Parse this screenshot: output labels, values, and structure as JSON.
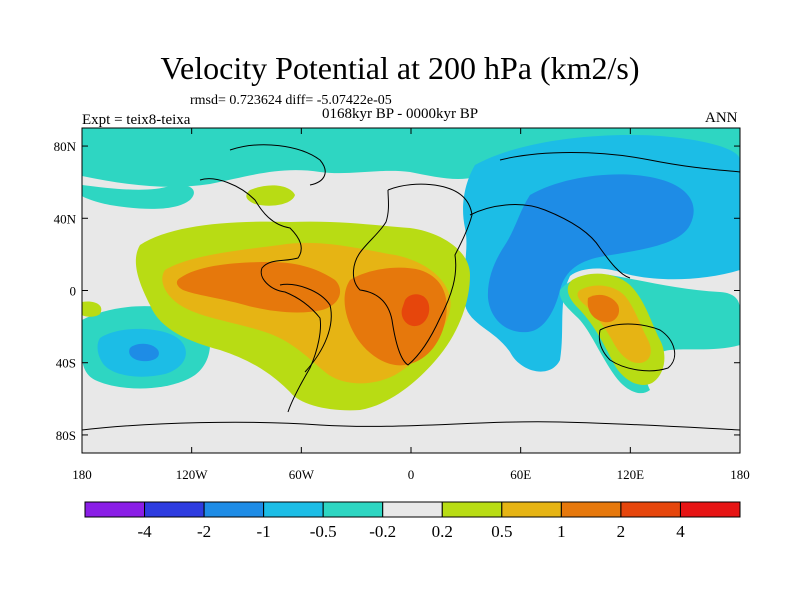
{
  "header": {
    "title": "Velocity Potential at 200 hPa (km2/s)",
    "stats": "rmsd= 0.723624  diff= -5.07422e-05",
    "period": "0168kyr BP - 0000kyr BP",
    "experiment": "Expt = teix8-teixa",
    "season": "ANN"
  },
  "chart_data": {
    "type": "heatmap",
    "title": "Velocity Potential at 200 hPa (km2/s)",
    "units": "km2/s",
    "xlim": [
      -180,
      180
    ],
    "ylim": [
      -90,
      90
    ],
    "x_ticks": [
      {
        "value": -180,
        "label": "180"
      },
      {
        "value": -120,
        "label": "120W"
      },
      {
        "value": -60,
        "label": "60W"
      },
      {
        "value": 0,
        "label": "0"
      },
      {
        "value": 60,
        "label": "60E"
      },
      {
        "value": 120,
        "label": "120E"
      },
      {
        "value": 180,
        "label": "180"
      }
    ],
    "y_ticks": [
      {
        "value": 80,
        "label": "80N"
      },
      {
        "value": 40,
        "label": "40N"
      },
      {
        "value": 0,
        "label": "0"
      },
      {
        "value": -40,
        "label": "40S"
      },
      {
        "value": -80,
        "label": "80S"
      }
    ],
    "color_levels": [
      "-4",
      "-2",
      "-1",
      "-0.5",
      "-0.2",
      "0.2",
      "0.5",
      "1",
      "2",
      "4"
    ],
    "color_bins": [
      "#8a1ee6",
      "#2e3ce0",
      "#1e8ce6",
      "#1cbde6",
      "#2ed6c2",
      "#e8e8e8",
      "#b8dc14",
      "#e6b414",
      "#e6780c",
      "#e6460c",
      "#e61414"
    ],
    "background_color": "#e8e8e8",
    "features": [
      {
        "region": "Arctic band",
        "level": "-0.5 to -0.2",
        "bin": 4
      },
      {
        "region": "Eurasia / Asian monsoon",
        "level": "-1 to -0.5",
        "bin": 3
      },
      {
        "region": "East Asia / Indian Ocean core",
        "level": "-2 to -1",
        "bin": 2
      },
      {
        "region": "South Pacific (near 150W, 30S)",
        "level": "-2 to -1",
        "bin": 2
      },
      {
        "region": "Western Pacific tropics",
        "level": "-0.5 to -0.2",
        "bin": 4
      },
      {
        "region": "Americas-Atlantic-Africa",
        "level": "0.2 to 0.5",
        "bin": 6
      },
      {
        "region": "Tropical Atlantic",
        "level": "0.5 to 1",
        "bin": 7
      },
      {
        "region": "Equatorial Atlantic / Central America",
        "level": "1 to 2",
        "bin": 8
      },
      {
        "region": "Gulf of Guinea core",
        "level": "2 to 4",
        "bin": 9
      },
      {
        "region": "Maritime Continent / Australia",
        "level": "1 to 2",
        "bin": 8
      }
    ]
  }
}
